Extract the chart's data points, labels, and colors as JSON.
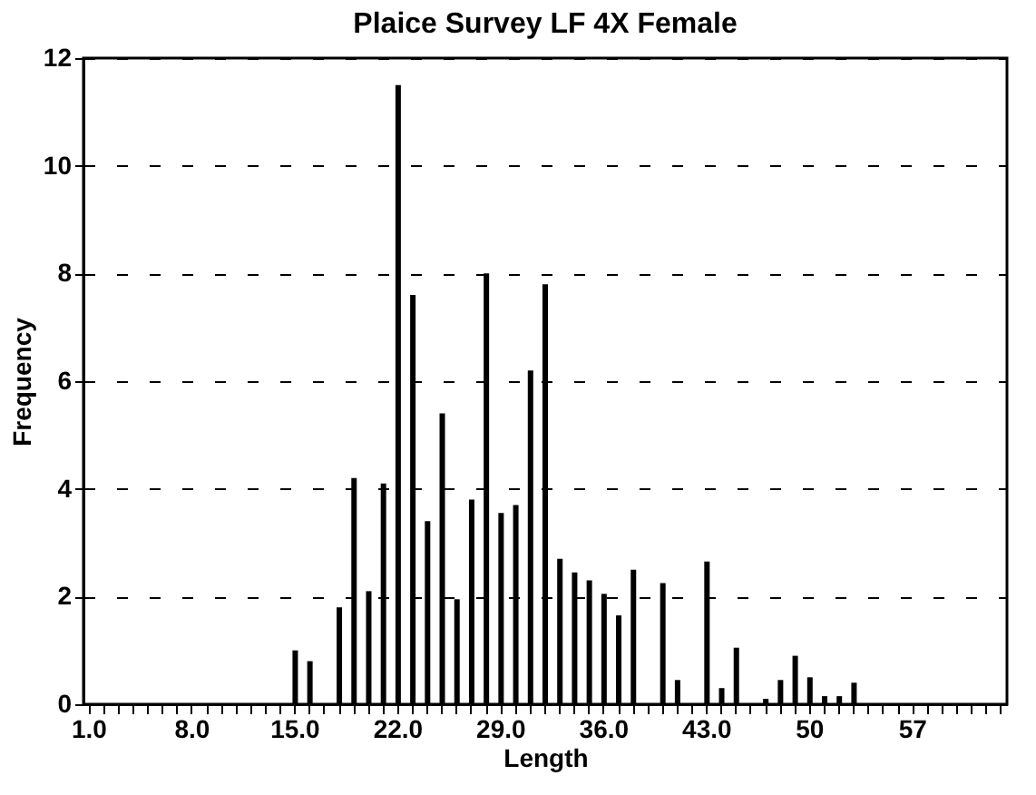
{
  "chart_data": {
    "type": "bar",
    "title": "Plaice Survey LF 4X Female",
    "xlabel": "Length",
    "ylabel": "Frequency",
    "categories": [
      "1.0",
      null,
      null,
      null,
      null,
      null,
      null,
      "8.0",
      null,
      null,
      null,
      null,
      null,
      null,
      "15.0",
      null,
      null,
      null,
      null,
      null,
      null,
      "22.0",
      null,
      null,
      null,
      null,
      null,
      null,
      "29.0",
      null,
      null,
      null,
      null,
      null,
      null,
      "36.0",
      null,
      null,
      null,
      null,
      null,
      null,
      "43.0",
      null,
      null,
      null,
      null,
      null,
      null,
      "50",
      null,
      null,
      null,
      null,
      null,
      null,
      "57",
      null,
      null,
      null,
      null,
      null,
      null
    ],
    "values": [
      null,
      null,
      null,
      null,
      null,
      null,
      null,
      null,
      null,
      null,
      null,
      null,
      null,
      null,
      1.0,
      0.8,
      null,
      1.8,
      4.2,
      2.1,
      4.1,
      11.5,
      7.6,
      3.4,
      5.4,
      1.95,
      3.8,
      8.0,
      3.55,
      3.7,
      6.2,
      7.8,
      2.7,
      2.45,
      2.3,
      2.05,
      1.65,
      2.5,
      null,
      2.25,
      0.45,
      null,
      2.65,
      0.3,
      1.05,
      null,
      0.1,
      0.45,
      0.9,
      0.5,
      0.15,
      0.15,
      0.4,
      null,
      null,
      null,
      null,
      null,
      null,
      null,
      null,
      null,
      null
    ],
    "color": "#000000",
    "ylim": [
      0,
      12
    ],
    "yticks": [
      0,
      2,
      4,
      6,
      8,
      10,
      12
    ],
    "grid": "y"
  }
}
